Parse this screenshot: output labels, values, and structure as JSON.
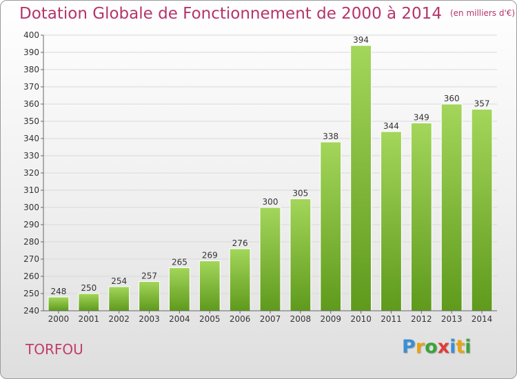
{
  "header": {
    "title": "Dotation Globale de Fonctionnement de 2000 à 2014",
    "unit": "(en milliers d'€)"
  },
  "footer": {
    "place": "TORFOU",
    "logo_letters": [
      "P",
      "r",
      "o",
      "x",
      "i",
      "t",
      "i"
    ],
    "logo_colors": [
      "#3a8fd6",
      "#e8a317",
      "#3aa43a",
      "#e23b3b",
      "#3a8fd6",
      "#e8a317",
      "#3aa43a"
    ]
  },
  "colors": {
    "bar_light": "#a3d65a",
    "bar_dark": "#5f9a1d",
    "grid": "#d9d9d9",
    "axis": "#666666",
    "text": "#333333"
  },
  "chart_data": {
    "type": "bar",
    "categories": [
      "2000",
      "2001",
      "2002",
      "2003",
      "2004",
      "2005",
      "2006",
      "2007",
      "2008",
      "2009",
      "2010",
      "2011",
      "2012",
      "2013",
      "2014"
    ],
    "values": [
      248,
      250,
      254,
      257,
      265,
      269,
      276,
      300,
      305,
      338,
      394,
      344,
      349,
      360,
      357
    ],
    "title": "Dotation Globale de Fonctionnement de 2000 à 2014",
    "unit_label": "(en milliers d'€)",
    "ylim": [
      240,
      400
    ],
    "y_ticks": [
      240,
      250,
      260,
      270,
      280,
      290,
      300,
      310,
      320,
      330,
      340,
      350,
      360,
      370,
      380,
      390,
      400
    ],
    "grid": true,
    "legend": "none"
  }
}
